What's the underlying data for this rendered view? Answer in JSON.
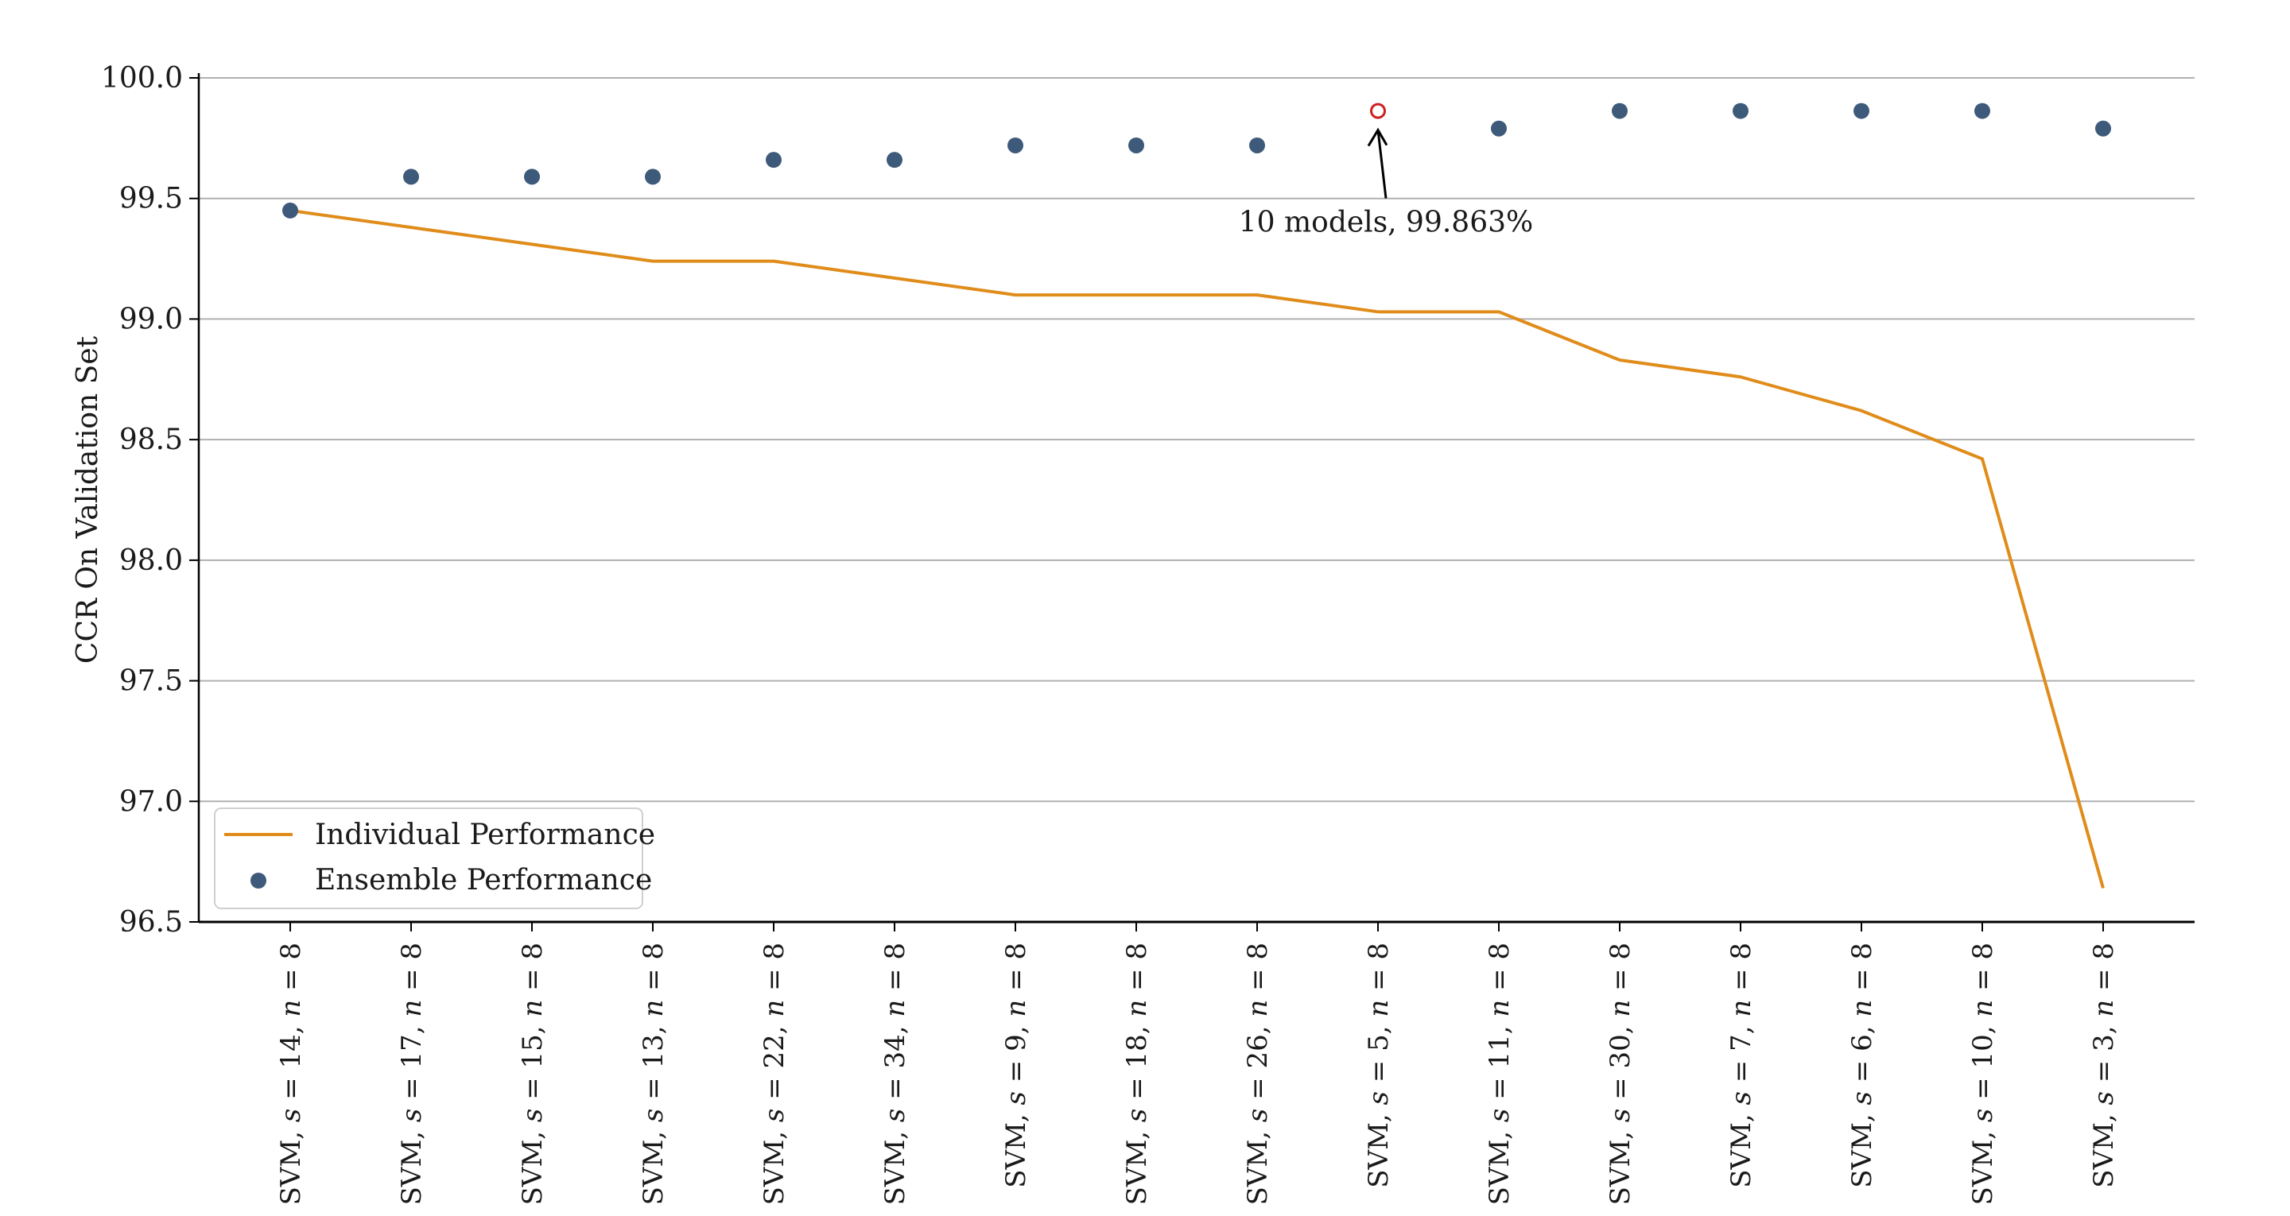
{
  "chart_data": {
    "type": "line",
    "title": "",
    "xlabel": "",
    "ylabel": "CCR On Validation Set",
    "ylim": [
      96.5,
      100.0
    ],
    "yticks": [
      "96.5",
      "97.0",
      "97.5",
      "98.0",
      "98.5",
      "99.0",
      "99.5",
      "100.0"
    ],
    "grid": "horizontal",
    "categories": [
      {
        "s": "14",
        "n": "8"
      },
      {
        "s": "17",
        "n": "8"
      },
      {
        "s": "15",
        "n": "8"
      },
      {
        "s": "13",
        "n": "8"
      },
      {
        "s": "22",
        "n": "8"
      },
      {
        "s": "34",
        "n": "8"
      },
      {
        "s": "9",
        "n": "8"
      },
      {
        "s": "18",
        "n": "8"
      },
      {
        "s": "26",
        "n": "8"
      },
      {
        "s": "5",
        "n": "8"
      },
      {
        "s": "11",
        "n": "8"
      },
      {
        "s": "30",
        "n": "8"
      },
      {
        "s": "7",
        "n": "8"
      },
      {
        "s": "6",
        "n": "8"
      },
      {
        "s": "10",
        "n": "8"
      },
      {
        "s": "3",
        "n": "8"
      }
    ],
    "category_prefix": "SVM",
    "series": [
      {
        "name": "Individual Performance",
        "kind": "line",
        "color": "#e08c1b",
        "values": [
          99.45,
          99.38,
          99.31,
          99.24,
          99.24,
          99.17,
          99.1,
          99.1,
          99.1,
          99.03,
          99.03,
          98.83,
          98.76,
          98.62,
          98.42,
          96.64
        ]
      },
      {
        "name": "Ensemble Performance",
        "kind": "scatter",
        "color": "#3e5a7a",
        "values": [
          99.45,
          99.59,
          99.59,
          99.59,
          99.66,
          99.66,
          99.72,
          99.72,
          99.72,
          99.863,
          99.79,
          99.863,
          99.863,
          99.863,
          99.863,
          99.79
        ]
      }
    ],
    "highlight": {
      "index": 9,
      "value": 99.863,
      "color": "#cc1f1f"
    },
    "annotation": {
      "text": "10 models, 99.863%",
      "target_index": 9,
      "target_value": 99.863
    },
    "legend": {
      "position": "lower-left",
      "entries": [
        "Individual Performance",
        "Ensemble Performance"
      ]
    }
  }
}
